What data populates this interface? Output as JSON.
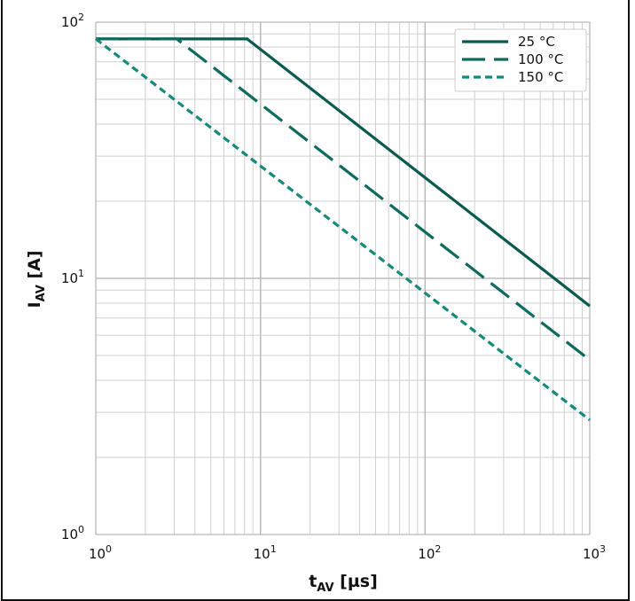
{
  "chart_data": {
    "type": "line",
    "xscale": "log",
    "yscale": "log",
    "xlim": [
      1,
      1000
    ],
    "ylim": [
      1,
      100
    ],
    "grid": true,
    "legend_position": "top-right",
    "xlabel": {
      "main": "t",
      "sub": "AV",
      "unit": " [µs]"
    },
    "ylabel": {
      "main": "I",
      "sub": "AV",
      "unit": " [A]"
    },
    "x_ticks": [
      {
        "value": 1,
        "base": "10",
        "exp": "0"
      },
      {
        "value": 10,
        "base": "10",
        "exp": "1"
      },
      {
        "value": 100,
        "base": "10",
        "exp": "2"
      },
      {
        "value": 1000,
        "base": "10",
        "exp": "3"
      }
    ],
    "y_ticks": [
      {
        "value": 1,
        "base": "10",
        "exp": "0"
      },
      {
        "value": 10,
        "base": "10",
        "exp": "1"
      },
      {
        "value": 100,
        "base": "10",
        "exp": "2"
      }
    ],
    "series": [
      {
        "name": "25 °C",
        "color": "#0b5a50",
        "dash": "solid",
        "x": [
          1,
          8.3,
          1000
        ],
        "y": [
          86,
          86,
          7.8
        ]
      },
      {
        "name": "100 °C",
        "color": "#0d6b5f",
        "dash": "dashed",
        "x": [
          1,
          3.1,
          1000
        ],
        "y": [
          86,
          86,
          4.8
        ]
      },
      {
        "name": "150 °C",
        "color": "#138a7b",
        "dash": "dotted",
        "x": [
          1,
          1000
        ],
        "y": [
          86,
          2.8
        ]
      }
    ]
  }
}
